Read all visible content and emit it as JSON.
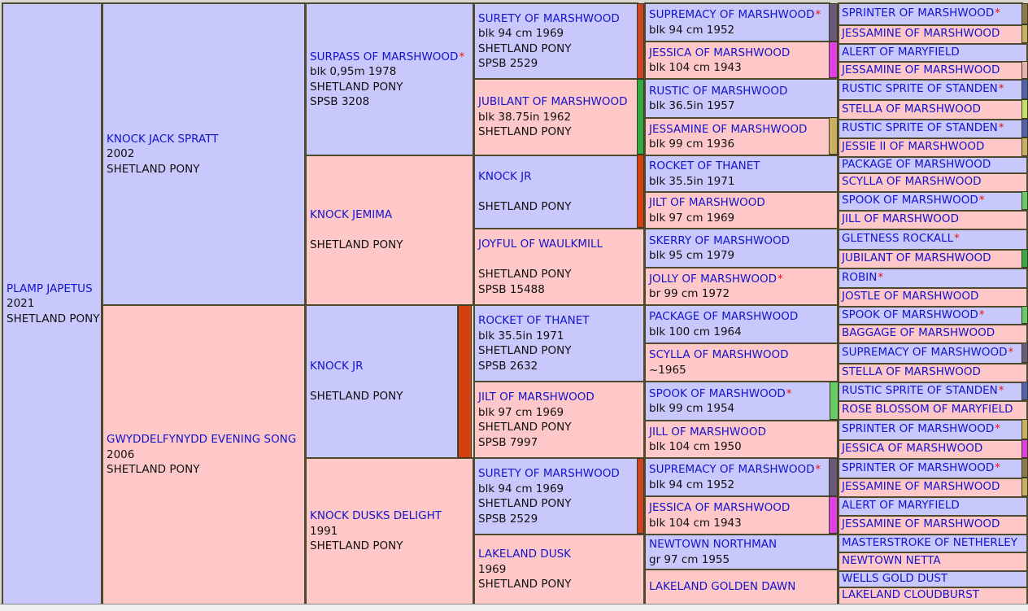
{
  "colors": {
    "male": "#c8c8fc",
    "female": "#ffc8c8",
    "link": "#1414cc",
    "star": "#ee1111",
    "border": "#4d4a2e"
  },
  "gen1": [
    {
      "name": "PLAMP JAPETUS",
      "lines": [
        "2021",
        "SHETLAND PONY"
      ]
    }
  ],
  "gen2": [
    {
      "name": "KNOCK JACK SPRATT",
      "lines": [
        "2002",
        "SHETLAND PONY"
      ]
    },
    {
      "name": "GWYDDELFYNYDD EVENING SONG",
      "lines": [
        "2006",
        "SHETLAND PONY"
      ]
    }
  ],
  "gen3": [
    {
      "name": "SURPASS OF MARSHWOOD",
      "star": "*",
      "lines": [
        "blk 0,95m 1978",
        "SHETLAND PONY",
        "SPSB 3208"
      ]
    },
    {
      "name": "KNOCK JEMIMA",
      "lines": [
        "",
        "SHETLAND PONY"
      ]
    },
    {
      "name": "KNOCK JR",
      "lines": [
        "",
        "SHETLAND PONY"
      ]
    },
    {
      "name": "KNOCK DUSKS DELIGHT",
      "lines": [
        "1991",
        "SHETLAND PONY"
      ]
    }
  ],
  "gen4": [
    {
      "name": "SURETY OF MARSHWOOD",
      "lines": [
        "blk 94 cm 1969",
        "SHETLAND PONY",
        "SPSB 2529"
      ]
    },
    {
      "name": "JUBILANT OF MARSHWOOD",
      "lines": [
        "blk 38.75in 1962",
        "SHETLAND PONY"
      ]
    },
    {
      "name": "KNOCK JR",
      "lines": [
        "",
        "SHETLAND PONY"
      ]
    },
    {
      "name": "JOYFUL OF WAULKMILL",
      "lines": [
        "",
        "SHETLAND PONY",
        "SPSB 15488"
      ]
    },
    {
      "name": "ROCKET OF THANET",
      "lines": [
        "blk 35.5in 1971",
        "SHETLAND PONY",
        "SPSB 2632"
      ]
    },
    {
      "name": "JILT OF MARSHWOOD",
      "lines": [
        "blk 97 cm 1969",
        "SHETLAND PONY",
        "SPSB 7997"
      ]
    },
    {
      "name": "SURETY OF MARSHWOOD",
      "lines": [
        "blk 94 cm 1969",
        "SHETLAND PONY",
        "SPSB 2529"
      ]
    },
    {
      "name": "LAKELAND DUSK",
      "lines": [
        "1969",
        "SHETLAND PONY"
      ]
    }
  ],
  "gen5": [
    {
      "name": "SUPREMACY OF MARSHWOOD",
      "star": "*",
      "lines": [
        "blk 94 cm 1952"
      ]
    },
    {
      "name": "JESSICA OF MARSHWOOD",
      "lines": [
        "blk 104 cm 1943"
      ]
    },
    {
      "name": "RUSTIC OF MARSHWOOD",
      "lines": [
        "blk 36.5in 1957"
      ]
    },
    {
      "name": "JESSAMINE OF MARSHWOOD",
      "lines": [
        "blk 99 cm 1936"
      ]
    },
    {
      "name": "ROCKET OF THANET",
      "lines": [
        "blk 35.5in 1971"
      ]
    },
    {
      "name": "JILT OF MARSHWOOD",
      "lines": [
        "blk 97 cm 1969"
      ]
    },
    {
      "name": "SKERRY OF MARSHWOOD",
      "lines": [
        "blk 95 cm 1979"
      ]
    },
    {
      "name": "JOLLY OF MARSHWOOD",
      "star": "*",
      "lines": [
        "br 99 cm 1972"
      ]
    },
    {
      "name": "PACKAGE OF MARSHWOOD",
      "lines": [
        "blk 100 cm 1964"
      ]
    },
    {
      "name": "SCYLLA OF MARSHWOOD",
      "lines": [
        "~1965"
      ]
    },
    {
      "name": "SPOOK OF MARSHWOOD",
      "star": "*",
      "lines": [
        "blk 99 cm 1954"
      ]
    },
    {
      "name": "JILL OF MARSHWOOD",
      "lines": [
        "blk 104 cm 1950"
      ]
    },
    {
      "name": "SUPREMACY OF MARSHWOOD",
      "star": "*",
      "lines": [
        "blk 94 cm 1952"
      ]
    },
    {
      "name": "JESSICA OF MARSHWOOD",
      "lines": [
        "blk 104 cm 1943"
      ]
    },
    {
      "name": "NEWTOWN NORTHMAN",
      "lines": [
        "gr 97 cm 1955"
      ]
    },
    {
      "name": "LAKELAND GOLDEN DAWN",
      "lines": []
    }
  ],
  "gen6": [
    {
      "name": "SPRINTER OF MARSHWOOD",
      "star": "*"
    },
    {
      "name": "JESSAMINE OF MARSHWOOD"
    },
    {
      "name": "ALERT OF MARYFIELD"
    },
    {
      "name": "JESSAMINE OF MARSHWOOD"
    },
    {
      "name": "RUSTIC SPRITE OF STANDEN",
      "star": "*"
    },
    {
      "name": "STELLA OF MARSHWOOD"
    },
    {
      "name": "RUSTIC SPRITE OF STANDEN",
      "star": "*"
    },
    {
      "name": "JESSIE II OF MARSHWOOD"
    },
    {
      "name": "PACKAGE OF MARSHWOOD"
    },
    {
      "name": "SCYLLA OF MARSHWOOD"
    },
    {
      "name": "SPOOK OF MARSHWOOD",
      "star": "*"
    },
    {
      "name": "JILL OF MARSHWOOD"
    },
    {
      "name": "GLETNESS ROCKALL",
      "star": "*"
    },
    {
      "name": "JUBILANT OF MARSHWOOD"
    },
    {
      "name": "ROBIN",
      "star": "*"
    },
    {
      "name": "JOSTLE OF MARSHWOOD"
    },
    {
      "name": "SPOOK OF MARSHWOOD",
      "star": "*"
    },
    {
      "name": "BAGGAGE OF MARSHWOOD"
    },
    {
      "name": "SUPREMACY OF MARSHWOOD",
      "star": "*"
    },
    {
      "name": "STELLA OF MARSHWOOD"
    },
    {
      "name": "RUSTIC SPRITE OF STANDEN",
      "star": "*"
    },
    {
      "name": "ROSE BLOSSOM OF MARYFIELD"
    },
    {
      "name": "SPRINTER OF MARSHWOOD",
      "star": "*"
    },
    {
      "name": "JESSICA OF MARSHWOOD"
    },
    {
      "name": "SPRINTER OF MARSHWOOD",
      "star": "*"
    },
    {
      "name": "JESSAMINE OF MARSHWOOD"
    },
    {
      "name": "ALERT OF MARYFIELD"
    },
    {
      "name": "JESSAMINE OF MARSHWOOD"
    },
    {
      "name": "MASTERSTROKE OF NETHERLEY"
    },
    {
      "name": "NEWTOWN NETTA"
    },
    {
      "name": "WELLS GOLD DUST"
    },
    {
      "name": "LAKELAND CLOUDBURST"
    }
  ]
}
